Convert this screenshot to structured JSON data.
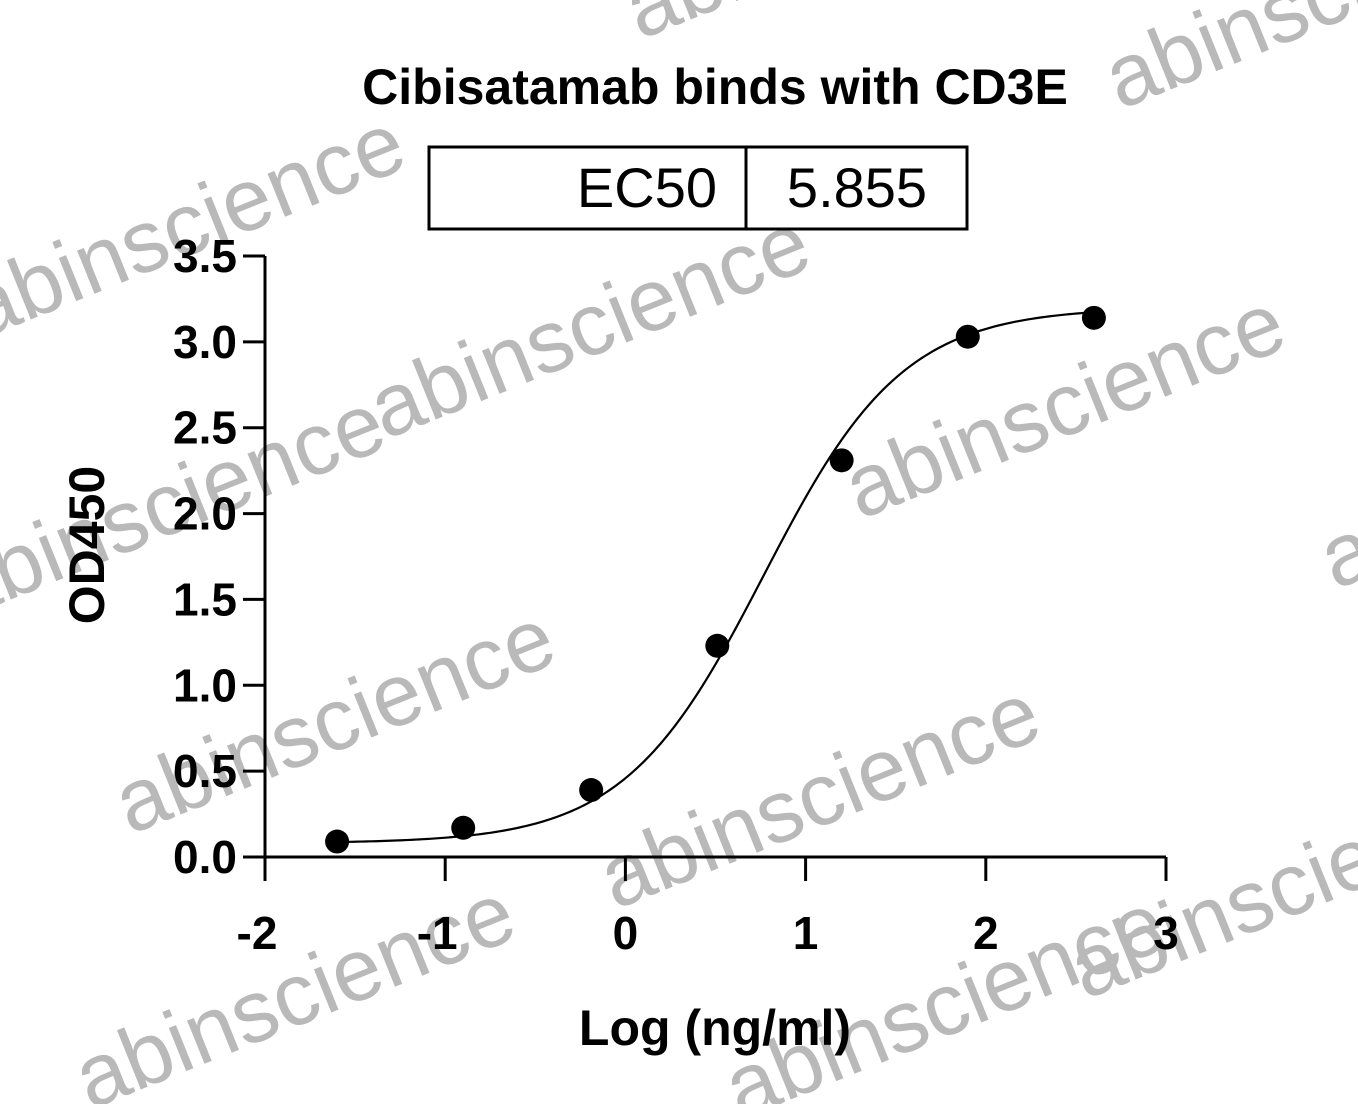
{
  "watermark": {
    "text": "abinscience",
    "color": "#b9b9b9"
  },
  "ec50_box": {
    "label": "EC50",
    "value": "5.855"
  },
  "chart_data": {
    "type": "scatter",
    "title": "Cibisatamab binds with CD3E",
    "xlabel": "Log (ng/ml)",
    "ylabel": "OD450",
    "xlim": [
      -2,
      3
    ],
    "ylim": [
      0,
      3.5
    ],
    "x_ticks": [
      -2,
      -1,
      0,
      1,
      2,
      3
    ],
    "x_tick_labels": [
      "-2",
      "-1",
      "0",
      "1",
      "2",
      "3"
    ],
    "y_ticks": [
      0,
      0.5,
      1,
      1.5,
      2,
      2.5,
      3,
      3.5
    ],
    "y_tick_labels": [
      "0.0",
      "0.5",
      "1.0",
      "1.5",
      "2.0",
      "2.5",
      "3.0",
      "3.5"
    ],
    "grid": false,
    "legend": "none",
    "series": [
      {
        "points": [
          {
            "x": -1.6,
            "y": 0.09
          },
          {
            "x": -0.9,
            "y": 0.17
          },
          {
            "x": -0.19,
            "y": 0.39
          },
          {
            "x": 0.51,
            "y": 1.23
          },
          {
            "x": 1.2,
            "y": 2.31
          },
          {
            "x": 1.9,
            "y": 3.03
          },
          {
            "x": 2.6,
            "y": 3.14
          }
        ],
        "fit": {
          "model": "4PL",
          "bottom": 0.08,
          "top": 3.2,
          "logEC50": 0.7675,
          "hill": 1.12
        },
        "color": "#000000"
      }
    ]
  }
}
